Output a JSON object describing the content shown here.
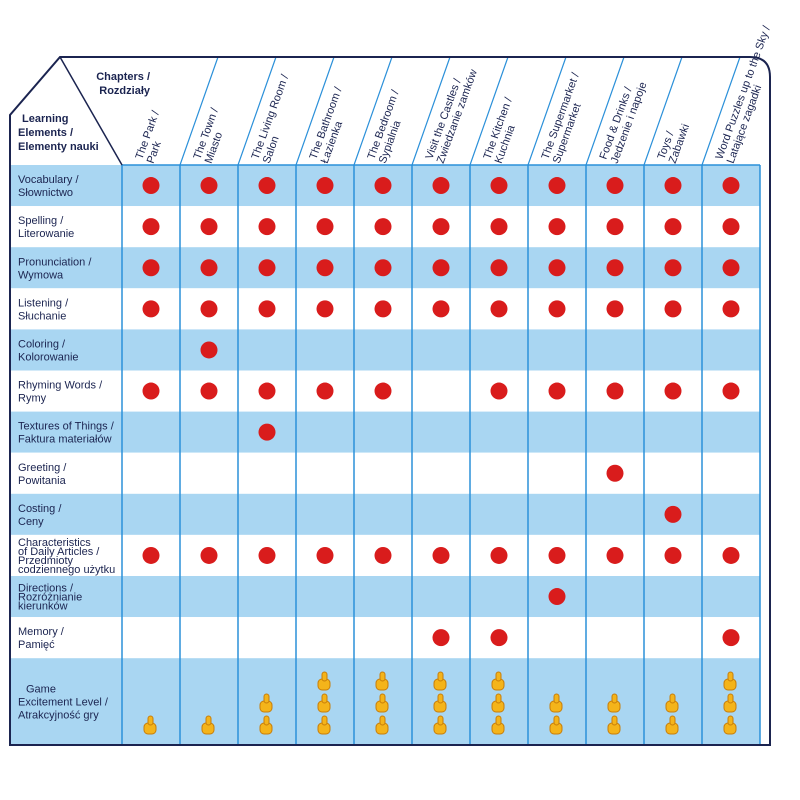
{
  "corner": {
    "chapters": [
      "Chapters /",
      "Rozdziały"
    ],
    "learning": [
      "Learning",
      "Elements /",
      "Elementy nauki"
    ]
  },
  "columns": [
    [
      "The Park /",
      "Park"
    ],
    [
      "The Town /",
      "Miasto"
    ],
    [
      "The Living Room /",
      "Salon"
    ],
    [
      "The Bathroom /",
      "Łazienka"
    ],
    [
      "The Bedroom /",
      "Sypialnia"
    ],
    [
      "Visit the Castles /",
      "Zwiedzanie zamków"
    ],
    [
      "The Kitchen /",
      "Kuchnia"
    ],
    [
      "The Supermarket /",
      "Supermarket"
    ],
    [
      "Food & Drinks /",
      "Jedzenie i napoje"
    ],
    [
      "Toys /",
      "Zabawki"
    ],
    [
      "Word Puzzles up to the Sky /",
      "Latające zagadki"
    ]
  ],
  "rows": [
    {
      "label": [
        "Vocabulary /",
        "Słownictwo"
      ],
      "cells": [
        true,
        true,
        true,
        true,
        true,
        true,
        true,
        true,
        true,
        true,
        true
      ]
    },
    {
      "label": [
        "Spelling /",
        "Literowanie"
      ],
      "cells": [
        true,
        true,
        true,
        true,
        true,
        true,
        true,
        true,
        true,
        true,
        true
      ]
    },
    {
      "label": [
        "Pronunciation /",
        "Wymowa"
      ],
      "cells": [
        true,
        true,
        true,
        true,
        true,
        true,
        true,
        true,
        true,
        true,
        true
      ]
    },
    {
      "label": [
        "Listening /",
        "Słuchanie"
      ],
      "cells": [
        true,
        true,
        true,
        true,
        true,
        true,
        true,
        true,
        true,
        true,
        true
      ]
    },
    {
      "label": [
        "Coloring /",
        "Kolorowanie"
      ],
      "cells": [
        false,
        true,
        false,
        false,
        false,
        false,
        false,
        false,
        false,
        false,
        false
      ]
    },
    {
      "label": [
        "Rhyming Words /",
        "Rymy"
      ],
      "cells": [
        true,
        true,
        true,
        true,
        true,
        false,
        true,
        true,
        true,
        true,
        true
      ]
    },
    {
      "label": [
        "Textures of Things /",
        "Faktura materiałów"
      ],
      "cells": [
        false,
        false,
        true,
        false,
        false,
        false,
        false,
        false,
        false,
        false,
        false
      ]
    },
    {
      "label": [
        "Greeting /",
        "Powitania"
      ],
      "cells": [
        false,
        false,
        false,
        false,
        false,
        false,
        false,
        false,
        true,
        false,
        false
      ]
    },
    {
      "label": [
        "Costing /",
        "Ceny"
      ],
      "cells": [
        false,
        false,
        false,
        false,
        false,
        false,
        false,
        false,
        false,
        true,
        false
      ]
    },
    {
      "label": [
        "Characteristics",
        "of Daily Articles /",
        "Przedmioty",
        "codziennego użytku"
      ],
      "cells": [
        true,
        true,
        true,
        true,
        true,
        true,
        true,
        true,
        true,
        true,
        true
      ]
    },
    {
      "label": [
        "Directions /",
        "Rozróżnianie",
        "kierunków"
      ],
      "cells": [
        false,
        false,
        false,
        false,
        false,
        false,
        false,
        true,
        false,
        false,
        false
      ]
    },
    {
      "label": [
        "Memory /",
        "Pamięć"
      ],
      "cells": [
        false,
        false,
        false,
        false,
        false,
        true,
        true,
        false,
        false,
        false,
        true
      ]
    }
  ],
  "game": {
    "label": [
      "Game",
      "Excitement Level /",
      "Atrakcyjność gry"
    ],
    "levels": [
      1,
      1,
      2,
      3,
      3,
      3,
      3,
      2,
      2,
      2,
      3
    ]
  }
}
